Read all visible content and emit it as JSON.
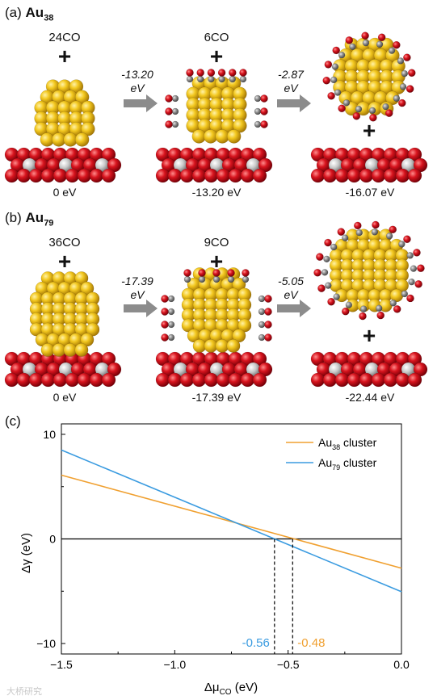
{
  "panel_a": {
    "label": "(a)",
    "cluster_base": "Au",
    "cluster_sub": "38",
    "co_left": "24CO",
    "co_mid": "6CO",
    "arrow1_value": "-13.20",
    "arrow1_unit": "eV",
    "arrow2_value": "-2.87",
    "arrow2_unit": "eV",
    "energies": [
      "0 eV",
      "-13.20 eV",
      "-16.07 eV"
    ]
  },
  "panel_b": {
    "label": "(b)",
    "cluster_base": "Au",
    "cluster_sub": "79",
    "co_left": "36CO",
    "co_mid": "9CO",
    "arrow1_value": "-17.39",
    "arrow1_unit": "eV",
    "arrow2_value": "-5.05",
    "arrow2_unit": "eV",
    "energies": [
      "0 eV",
      "-17.39 eV",
      "-22.44 eV"
    ]
  },
  "plus_sign": "+",
  "panel_c_label": "(c)",
  "colors": {
    "au38": "#f0a030",
    "au79": "#3a9be0",
    "gold": "#f5cc2a",
    "oxygen": "#d8141e",
    "carbon": "#8a8a8a",
    "arrow": "#8c8c8c"
  },
  "chart_data": {
    "type": "line",
    "ylabel_base": "Δγ",
    "ylabel_unit": "(eV)",
    "xlabel_base": "Δμ",
    "xlabel_sub": "CO",
    "xlabel_unit": "(eV)",
    "xlim": [
      -1.5,
      0.0
    ],
    "ylim": [
      -11,
      11
    ],
    "xticks": [
      -1.5,
      -1.0,
      -0.5,
      0.0
    ],
    "xtick_labels": [
      "−1.5",
      "−1.0",
      "−0.5",
      "0.0"
    ],
    "yticks": [
      -10,
      0,
      10
    ],
    "ytick_labels": [
      "−10",
      "0",
      "10"
    ],
    "series": [
      {
        "name_base": "Au",
        "name_sub": "38",
        "name_suffix": "cluster",
        "color": "#f0a030",
        "x": [
          -1.5,
          0.0
        ],
        "y": [
          6.1,
          -2.8
        ]
      },
      {
        "name_base": "Au",
        "name_sub": "79",
        "name_suffix": "cluster",
        "color": "#3a9be0",
        "x": [
          -1.5,
          0.0
        ],
        "y": [
          8.5,
          -5.05
        ]
      }
    ],
    "annotations": [
      {
        "x": -0.56,
        "label": "-0.56",
        "color": "#3a9be0"
      },
      {
        "x": -0.48,
        "label": "-0.48",
        "color": "#f0a030"
      }
    ],
    "legend": "top-right",
    "grid": false
  },
  "watermark": "大桥研究"
}
